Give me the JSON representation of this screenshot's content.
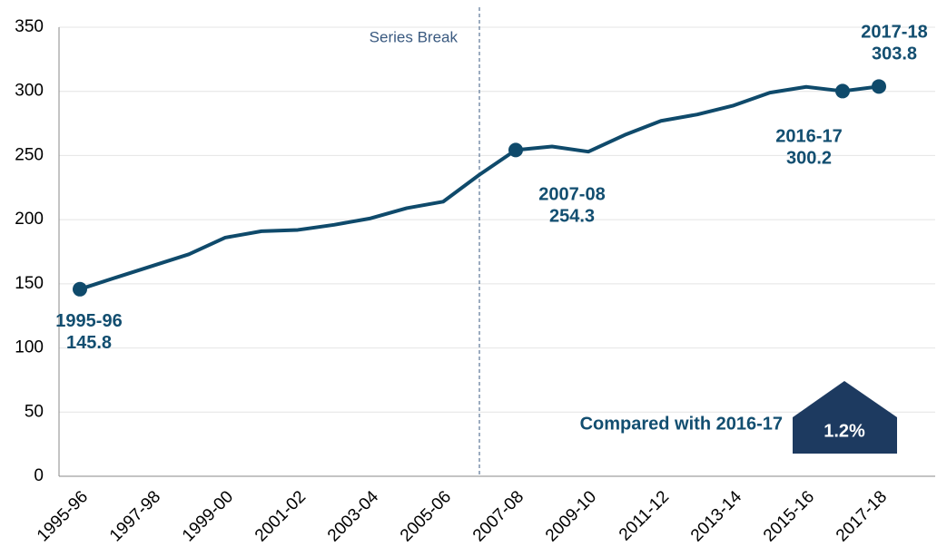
{
  "chart_data": {
    "type": "line",
    "categories": [
      "1995-96",
      null,
      "1997-98",
      null,
      "1999-00",
      null,
      "2001-02",
      null,
      "2003-04",
      null,
      "2005-06",
      null,
      "2007-08",
      null,
      "2009-10",
      null,
      "2011-12",
      null,
      "2013-14",
      null,
      "2015-16",
      null,
      "2017-18"
    ],
    "series": [
      {
        "color": "#0f4a6b",
        "values": [
          145.8,
          155,
          164,
          173,
          186,
          191,
          192,
          196,
          201,
          209,
          214,
          235,
          254.3,
          257,
          253,
          266,
          277,
          282,
          289,
          299,
          303.5,
          300.2,
          303.8
        ],
        "point_labels": [
          "1995-96",
          null,
          null,
          null,
          null,
          null,
          null,
          null,
          null,
          null,
          null,
          null,
          "2007-08",
          null,
          null,
          null,
          null,
          null,
          null,
          null,
          null,
          "2016-17",
          "2017-18"
        ],
        "breaks": [
          null,
          null,
          null,
          null,
          null,
          null,
          null,
          null,
          null,
          null,
          null,
          "Series Break",
          null,
          null,
          null,
          null,
          null,
          null,
          null,
          null,
          null,
          null,
          null
        ]
      }
    ],
    "ylim": [
      0,
      350
    ],
    "yticks": [
      0,
      50,
      100,
      150,
      200,
      250,
      300,
      350
    ],
    "grid": true,
    "callout": {
      "text": "Compared with 2016-17",
      "value": 1.2,
      "value_label": "1.2%"
    }
  }
}
